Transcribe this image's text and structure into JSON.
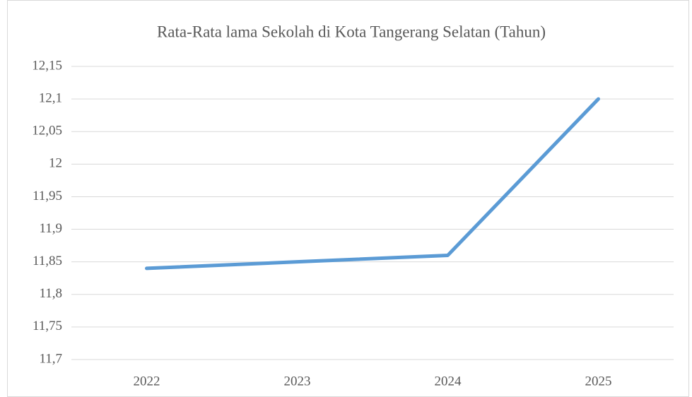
{
  "chart_data": {
    "type": "line",
    "title": "Rata-Rata lama Sekolah di Kota Tangerang Selatan (Tahun)",
    "categories": [
      "2022",
      "2023",
      "2024",
      "2025"
    ],
    "values": [
      11.84,
      11.85,
      11.86,
      12.1
    ],
    "color": "#5b9bd5",
    "ylim": [
      11.7,
      12.15
    ],
    "yticks": [
      {
        "value": 11.7,
        "label": "11,7"
      },
      {
        "value": 11.75,
        "label": "11,75"
      },
      {
        "value": 11.8,
        "label": "11,8"
      },
      {
        "value": 11.85,
        "label": "11,85"
      },
      {
        "value": 11.9,
        "label": "11,9"
      },
      {
        "value": 11.95,
        "label": "11,95"
      },
      12,
      {
        "value": 12.05,
        "label": "12,05"
      },
      {
        "value": 12.1,
        "label": "12,1"
      },
      {
        "value": 12.15,
        "label": "12,15"
      }
    ],
    "grid": true
  }
}
